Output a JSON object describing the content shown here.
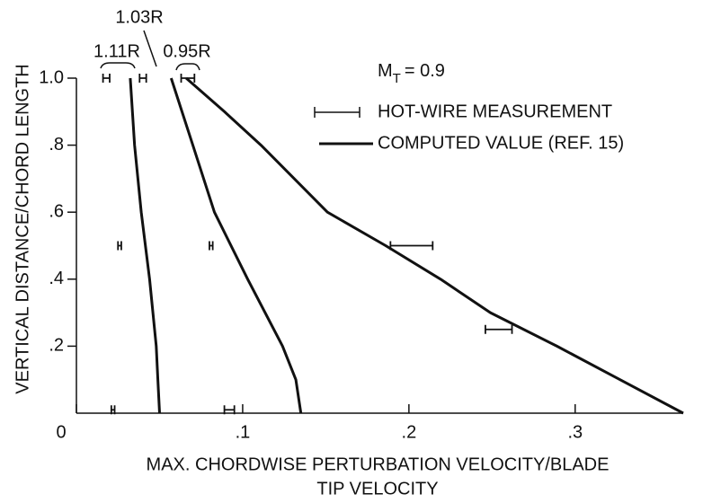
{
  "chart_data": {
    "type": "line",
    "ylabel": "VERTICAL DISTANCE/CHORD LENGTH",
    "xlabel": [
      "MAX. CHORDWISE PERTURBATION VELOCITY/BLADE",
      "TIP VELOCITY"
    ],
    "xlim": [
      0,
      0.365
    ],
    "ylim": [
      0,
      1.0
    ],
    "xticks": [
      0,
      {
        "value": 0.1,
        "label": ".1"
      },
      {
        "value": 0.2,
        "label": ".2"
      },
      {
        "value": 0.3,
        "label": ".3"
      }
    ],
    "yticks": [
      {
        "value": 0.2,
        "label": ".2"
      },
      {
        "value": 0.4,
        "label": ".4"
      },
      {
        "value": 0.6,
        "label": ".6"
      },
      {
        "value": 0.8,
        "label": ".8"
      },
      {
        "value": 1.0,
        "label": "1.0"
      }
    ],
    "mach": {
      "symbol": "M",
      "subscript": "T",
      "text": "= 0.9"
    },
    "computed_label": "COMPUTED VALUE (REF. 15)",
    "series": [
      {
        "name": "1.11R",
        "color": "#111111",
        "x": [
          0.0324,
          0.035,
          0.039,
          0.044,
          0.048,
          0.049,
          0.05
        ],
        "y": [
          1.0,
          0.8,
          0.6,
          0.4,
          0.2,
          0.1,
          0
        ]
      },
      {
        "name": "1.03R",
        "color": "#111111",
        "x": [
          0.057,
          0.07,
          0.083,
          0.103,
          0.124,
          0.132,
          0.135
        ],
        "y": [
          1.0,
          0.8,
          0.6,
          0.4,
          0.2,
          0.1,
          0
        ]
      },
      {
        "name": "0.95R",
        "color": "#111111",
        "x": [
          0.066,
          0.089,
          0.111,
          0.151,
          0.186,
          0.219,
          0.249,
          0.289,
          0.327,
          0.365
        ],
        "y": [
          1.0,
          0.9,
          0.8,
          0.6,
          0.5,
          0.4,
          0.3,
          0.2,
          0.1,
          0
        ]
      }
    ],
    "measurements": {
      "name": "HOT-WIRE MEASUREMENT",
      "color": "#111111",
      "x": [
        0.018,
        0.04,
        0.067,
        0.026,
        0.081,
        0.2016,
        0.254,
        0.022,
        0.092
      ],
      "y": [
        1.0,
        1.0,
        1.0,
        0.5,
        0.5,
        0.5,
        0.25,
        0.01,
        0.01
      ],
      "xerr": [
        0.002,
        0.002,
        0.004,
        0.001,
        0.001,
        0.0127,
        0.008,
        0.001,
        0.003
      ]
    }
  }
}
